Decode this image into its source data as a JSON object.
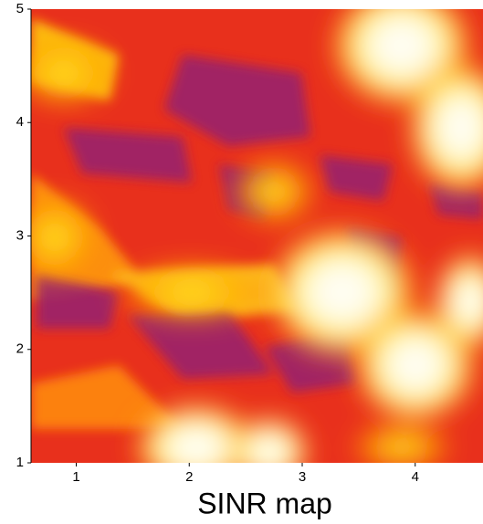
{
  "chart_data": {
    "type": "heatmap",
    "title": "SINR map",
    "xlim": [
      0.6,
      4.6
    ],
    "xticks": [
      1,
      2,
      3,
      4
    ],
    "ylim": [
      1,
      5
    ],
    "yticks": [
      1,
      2,
      3,
      4,
      5
    ]
  }
}
